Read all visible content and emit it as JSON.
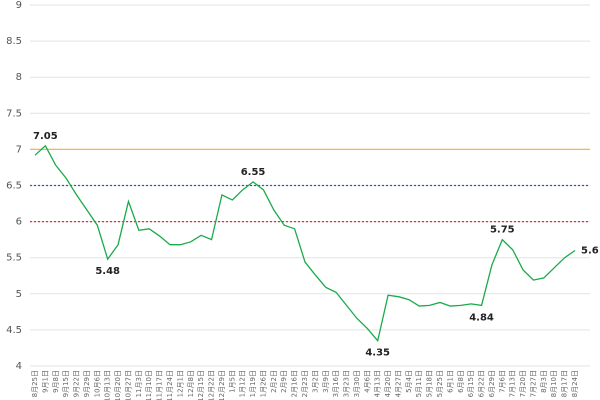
{
  "chart_data": {
    "type": "line",
    "categories": [
      "8月25日",
      "9月1日",
      "9月8日",
      "9月15日",
      "9月22日",
      "9月29日",
      "10月6日",
      "10月13日",
      "10月20日",
      "10月27日",
      "11月3日",
      "11月10日",
      "11月17日",
      "11月24日",
      "12月1日",
      "12月8日",
      "12月15日",
      "12月22日",
      "12月29日",
      "1月5日",
      "1月12日",
      "1月19日",
      "1月26日",
      "2月2日",
      "2月9日",
      "2月16日",
      "2月23日",
      "3月2日",
      "3月9日",
      "3月16日",
      "3月23日",
      "3月30日",
      "4月6日",
      "4月13日",
      "4月20日",
      "4月27日",
      "5月4日",
      "5月11日",
      "5月18日",
      "5月25日",
      "6月1日",
      "6月8日",
      "6月15日",
      "6月22日",
      "6月29日",
      "7月6日",
      "7月13日",
      "7月20日",
      "7月27日",
      "8月3日",
      "8月10日",
      "8月17日",
      "8月24日"
    ],
    "values": [
      6.92,
      7.05,
      6.78,
      6.6,
      6.37,
      6.16,
      5.95,
      5.48,
      5.68,
      6.28,
      5.88,
      5.9,
      5.8,
      5.68,
      5.68,
      5.72,
      5.81,
      5.75,
      6.37,
      6.3,
      6.44,
      6.55,
      6.44,
      6.16,
      5.95,
      5.9,
      5.44,
      5.26,
      5.09,
      5.02,
      4.84,
      4.66,
      4.52,
      4.35,
      4.98,
      4.96,
      4.92,
      4.83,
      4.84,
      4.88,
      4.83,
      4.84,
      4.86,
      4.84,
      5.4,
      5.75,
      5.61,
      5.33,
      5.19,
      5.22,
      5.36,
      5.5,
      5.6
    ],
    "value_labels": [
      null,
      "7.05",
      null,
      null,
      null,
      null,
      null,
      "5.48",
      null,
      null,
      null,
      null,
      null,
      null,
      null,
      null,
      null,
      null,
      null,
      null,
      null,
      "6.55",
      null,
      null,
      null,
      null,
      null,
      null,
      null,
      null,
      null,
      null,
      null,
      "4.35",
      null,
      null,
      null,
      null,
      null,
      null,
      null,
      null,
      null,
      "4.84",
      null,
      "5.75",
      null,
      null,
      null,
      null,
      null,
      null,
      "5.6"
    ],
    "color": "#1aaa4a",
    "ylim": [
      4,
      9
    ],
    "yticks": [
      4,
      4.5,
      5,
      5.5,
      6,
      6.5,
      7,
      7.5,
      8,
      8.5,
      9
    ],
    "grid": true,
    "ref_lines": [
      {
        "value": 7,
        "color": "#f5b942",
        "style": "solid"
      },
      {
        "value": 6.5,
        "color": "#3a4fc4",
        "style": "dotted"
      },
      {
        "value": 6,
        "color": "#e0303a",
        "style": "dotted"
      }
    ]
  }
}
